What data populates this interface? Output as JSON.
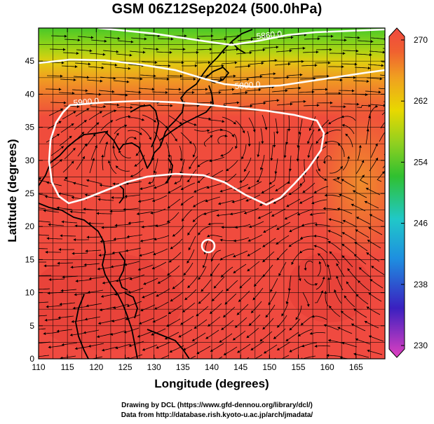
{
  "title": "GSM 06Z12Sep2024 (500.0hPa)",
  "x_axis": {
    "label": "Longitude (degrees)",
    "ticks": [
      "110",
      "115",
      "120",
      "125",
      "130",
      "135",
      "140",
      "145",
      "150",
      "155",
      "160",
      "165"
    ],
    "range": [
      110,
      170
    ]
  },
  "y_axis": {
    "label": "Latitude  (degrees)",
    "ticks": [
      "0",
      "5",
      "10",
      "15",
      "20",
      "25",
      "30",
      "35",
      "40",
      "45"
    ],
    "range": [
      0,
      50
    ]
  },
  "colorbar": {
    "ticks": [
      "270",
      "262",
      "254",
      "246",
      "238",
      "230"
    ],
    "range": [
      230,
      270
    ],
    "colors": [
      "#e040c0",
      "#3a20c0",
      "#1e8fe0",
      "#20c8c8",
      "#30c030",
      "#90d020",
      "#e8d800",
      "#f0a020",
      "#f06030",
      "#f04840"
    ]
  },
  "contours": {
    "label_5860": "5860.0",
    "label_5800": "5800.0",
    "label_5900": "5900.0",
    "color": "#ffffff"
  },
  "field_colors": {
    "warm": "#f04a40",
    "warm_dark": "#e23c36",
    "orange": "#f0822a",
    "yellow": "#d8d810",
    "green": "#5cd02a"
  },
  "credits": {
    "line1": "Drawing by DCL (https://www.gfd-dennou.org/library/dcl/)",
    "line2": "Data from http://database.rish.kyoto-u.ac.jp/arch/jmadata/"
  }
}
